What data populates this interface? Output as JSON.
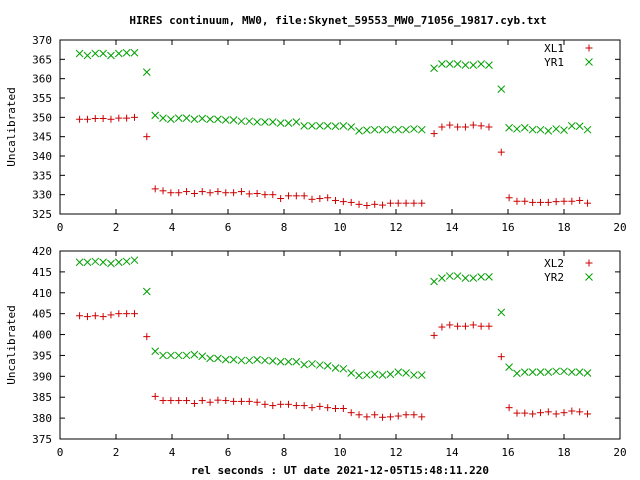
{
  "title": "HIRES continuum, MW0, file:Skynet_59553_MW0_71056_19817.cyb.txt",
  "colors": {
    "xl": "#cc0000",
    "yr": "#00a000"
  },
  "chart_data": [
    {
      "type": "scatter",
      "xlabel": "",
      "ylabel": "Uncalibrated",
      "xlim": [
        0,
        20
      ],
      "ylim": [
        325,
        370
      ],
      "xticks": [
        0,
        2,
        4,
        6,
        8,
        10,
        12,
        14,
        16,
        18,
        20
      ],
      "yticks": [
        325,
        330,
        335,
        340,
        345,
        350,
        355,
        360,
        365,
        370
      ],
      "grid": false,
      "legend": "top-right",
      "series": [
        {
          "name": "XL1",
          "marker": "plus",
          "color": "#cc0000",
          "x": [
            0.7,
            0.98,
            1.26,
            1.54,
            1.82,
            2.1,
            2.38,
            2.66,
            3.1,
            3.4,
            3.68,
            3.96,
            4.24,
            4.52,
            4.8,
            5.08,
            5.36,
            5.64,
            5.92,
            6.2,
            6.48,
            6.76,
            7.04,
            7.32,
            7.6,
            7.88,
            8.16,
            8.44,
            8.72,
            9.0,
            9.28,
            9.56,
            9.84,
            10.12,
            10.4,
            10.68,
            10.96,
            11.24,
            11.52,
            11.8,
            12.08,
            12.36,
            12.64,
            12.92,
            13.36,
            13.64,
            13.92,
            14.2,
            14.48,
            14.76,
            15.04,
            15.32,
            15.76,
            16.04,
            16.32,
            16.6,
            16.88,
            17.16,
            17.44,
            17.72,
            18.0,
            18.28,
            18.56,
            18.84
          ],
          "y": [
            349.5,
            349.5,
            349.7,
            349.7,
            349.5,
            349.8,
            349.8,
            350.0,
            345.0,
            331.5,
            331.0,
            330.5,
            330.5,
            330.8,
            330.3,
            330.8,
            330.5,
            330.8,
            330.5,
            330.5,
            330.8,
            330.2,
            330.3,
            330.0,
            330.0,
            329.0,
            329.7,
            329.7,
            329.7,
            328.8,
            329.0,
            329.2,
            328.5,
            328.2,
            328.0,
            327.5,
            327.2,
            327.5,
            327.3,
            327.8,
            327.8,
            327.8,
            327.8,
            327.8,
            345.8,
            347.5,
            348.0,
            347.5,
            347.5,
            348.0,
            347.8,
            347.5,
            341.0,
            329.2,
            328.3,
            328.3,
            328.0,
            328.0,
            328.0,
            328.2,
            328.3,
            328.3,
            328.5,
            327.8
          ]
        },
        {
          "name": "YR1",
          "marker": "cross",
          "color": "#00a000",
          "x": [
            0.7,
            0.98,
            1.26,
            1.54,
            1.82,
            2.1,
            2.38,
            2.66,
            3.1,
            3.4,
            3.68,
            3.96,
            4.24,
            4.52,
            4.8,
            5.08,
            5.36,
            5.64,
            5.92,
            6.2,
            6.48,
            6.76,
            7.04,
            7.32,
            7.6,
            7.88,
            8.16,
            8.44,
            8.72,
            9.0,
            9.28,
            9.56,
            9.84,
            10.12,
            10.4,
            10.68,
            10.96,
            11.24,
            11.52,
            11.8,
            12.08,
            12.36,
            12.64,
            12.92,
            13.36,
            13.64,
            13.92,
            14.2,
            14.48,
            14.76,
            15.04,
            15.32,
            15.76,
            16.04,
            16.32,
            16.6,
            16.88,
            17.16,
            17.44,
            17.72,
            18.0,
            18.28,
            18.56,
            18.84
          ],
          "y": [
            366.5,
            366.0,
            366.5,
            366.5,
            366.0,
            366.5,
            366.7,
            366.7,
            361.7,
            350.5,
            349.8,
            349.5,
            349.8,
            349.8,
            349.5,
            349.7,
            349.5,
            349.5,
            349.3,
            349.3,
            349.0,
            349.0,
            348.8,
            348.8,
            348.8,
            348.5,
            348.5,
            348.8,
            347.8,
            347.8,
            347.8,
            347.8,
            347.7,
            347.8,
            347.5,
            346.5,
            346.7,
            346.8,
            346.8,
            346.8,
            346.8,
            346.8,
            347.0,
            346.8,
            362.7,
            363.8,
            363.8,
            363.8,
            363.5,
            363.5,
            363.8,
            363.5,
            357.3,
            347.3,
            347.0,
            347.3,
            346.8,
            346.8,
            346.5,
            347.0,
            346.7,
            347.8,
            347.7,
            346.8
          ]
        }
      ]
    },
    {
      "type": "scatter",
      "xlabel": "rel seconds : UT date 2021-12-05T15:48:11.220",
      "ylabel": "Uncalibrated",
      "xlim": [
        0,
        20
      ],
      "ylim": [
        375,
        420
      ],
      "xticks": [
        0,
        2,
        4,
        6,
        8,
        10,
        12,
        14,
        16,
        18,
        20
      ],
      "yticks": [
        375,
        380,
        385,
        390,
        395,
        400,
        405,
        410,
        415,
        420
      ],
      "grid": false,
      "legend": "top-right",
      "series": [
        {
          "name": "XL2",
          "marker": "plus",
          "color": "#cc0000",
          "x": [
            0.7,
            0.98,
            1.26,
            1.54,
            1.82,
            2.1,
            2.38,
            2.66,
            3.1,
            3.4,
            3.68,
            3.96,
            4.24,
            4.52,
            4.8,
            5.08,
            5.36,
            5.64,
            5.92,
            6.2,
            6.48,
            6.76,
            7.04,
            7.32,
            7.6,
            7.88,
            8.16,
            8.44,
            8.72,
            9.0,
            9.28,
            9.56,
            9.84,
            10.12,
            10.4,
            10.68,
            10.96,
            11.24,
            11.52,
            11.8,
            12.08,
            12.36,
            12.64,
            12.92,
            13.36,
            13.64,
            13.92,
            14.2,
            14.48,
            14.76,
            15.04,
            15.32,
            15.76,
            16.04,
            16.32,
            16.6,
            16.88,
            17.16,
            17.44,
            17.72,
            18.0,
            18.28,
            18.56,
            18.84
          ],
          "y": [
            404.5,
            404.3,
            404.5,
            404.3,
            404.7,
            405.0,
            405.0,
            405.0,
            399.5,
            385.2,
            384.2,
            384.2,
            384.2,
            384.2,
            383.5,
            384.2,
            383.8,
            384.3,
            384.2,
            384.0,
            384.0,
            384.0,
            383.8,
            383.3,
            383.0,
            383.3,
            383.3,
            383.0,
            383.0,
            382.5,
            382.8,
            382.5,
            382.3,
            382.3,
            381.3,
            380.8,
            380.3,
            380.8,
            380.2,
            380.3,
            380.5,
            380.8,
            380.8,
            380.3,
            399.8,
            401.8,
            402.3,
            402.0,
            402.0,
            402.3,
            402.0,
            402.0,
            394.7,
            382.5,
            381.2,
            381.2,
            381.0,
            381.3,
            381.5,
            381.0,
            381.3,
            381.7,
            381.5,
            381.0
          ]
        },
        {
          "name": "YR2",
          "marker": "cross",
          "color": "#00a000",
          "x": [
            0.7,
            0.98,
            1.26,
            1.54,
            1.82,
            2.1,
            2.38,
            2.66,
            3.1,
            3.4,
            3.68,
            3.96,
            4.24,
            4.52,
            4.8,
            5.08,
            5.36,
            5.64,
            5.92,
            6.2,
            6.48,
            6.76,
            7.04,
            7.32,
            7.6,
            7.88,
            8.16,
            8.44,
            8.72,
            9.0,
            9.28,
            9.56,
            9.84,
            10.12,
            10.4,
            10.68,
            10.96,
            11.24,
            11.52,
            11.8,
            12.08,
            12.36,
            12.64,
            12.92,
            13.36,
            13.64,
            13.92,
            14.2,
            14.48,
            14.76,
            15.04,
            15.32,
            15.76,
            16.04,
            16.32,
            16.6,
            16.88,
            17.16,
            17.44,
            17.72,
            18.0,
            18.28,
            18.56,
            18.84
          ],
          "y": [
            417.3,
            417.3,
            417.5,
            417.3,
            417.0,
            417.3,
            417.5,
            417.8,
            410.3,
            396.0,
            395.0,
            395.0,
            395.0,
            395.0,
            395.2,
            394.8,
            394.3,
            394.3,
            394.0,
            394.0,
            393.8,
            393.8,
            394.0,
            393.8,
            393.7,
            393.5,
            393.5,
            393.5,
            392.8,
            393.0,
            392.7,
            392.5,
            392.0,
            391.8,
            390.8,
            390.2,
            390.3,
            390.5,
            390.3,
            390.5,
            391.0,
            390.8,
            390.3,
            390.3,
            412.7,
            413.5,
            414.0,
            414.0,
            413.5,
            413.5,
            413.8,
            413.8,
            405.3,
            392.2,
            390.7,
            391.0,
            391.0,
            391.0,
            391.0,
            391.2,
            391.2,
            391.0,
            391.0,
            390.8
          ]
        }
      ]
    }
  ]
}
